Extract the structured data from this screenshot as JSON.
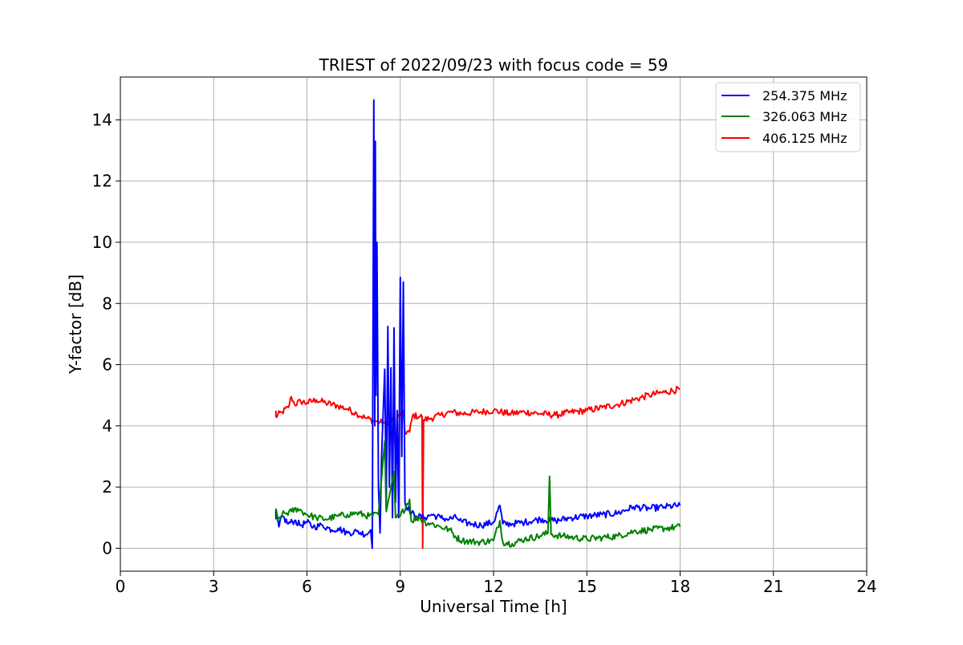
{
  "chart_data": {
    "type": "line",
    "title": "TRIEST of 2022/09/23 with focus code = 59",
    "xlabel": "Universal Time [h]",
    "ylabel": "Y-factor [dB]",
    "xlim": [
      0,
      24
    ],
    "ylim": [
      -0.75,
      15.4
    ],
    "xticks": [
      0,
      3,
      6,
      9,
      12,
      15,
      18,
      21,
      24
    ],
    "yticks": [
      0,
      2,
      4,
      6,
      8,
      10,
      12,
      14
    ],
    "grid": true,
    "legend_position": "top-right",
    "series": [
      {
        "name": "254.375 MHz",
        "color": "#0000ff",
        "points": [
          [
            5.0,
            0.95
          ],
          [
            5.0,
            1.25
          ],
          [
            5.1,
            0.7
          ],
          [
            5.2,
            1.05
          ],
          [
            5.4,
            0.8
          ],
          [
            5.6,
            0.9
          ],
          [
            5.8,
            0.75
          ],
          [
            6.0,
            0.85
          ],
          [
            6.2,
            0.7
          ],
          [
            6.5,
            0.75
          ],
          [
            6.8,
            0.6
          ],
          [
            7.0,
            0.65
          ],
          [
            7.3,
            0.5
          ],
          [
            7.6,
            0.55
          ],
          [
            7.9,
            0.45
          ],
          [
            8.05,
            0.6
          ],
          [
            8.1,
            0.0
          ],
          [
            8.15,
            14.65
          ],
          [
            8.18,
            4.0
          ],
          [
            8.2,
            13.3
          ],
          [
            8.22,
            5.0
          ],
          [
            8.25,
            10.0
          ],
          [
            8.3,
            2.0
          ],
          [
            8.35,
            0.5
          ],
          [
            8.4,
            3.0
          ],
          [
            8.5,
            5.85
          ],
          [
            8.55,
            1.5
          ],
          [
            8.6,
            7.25
          ],
          [
            8.65,
            2.0
          ],
          [
            8.7,
            5.9
          ],
          [
            8.75,
            1.0
          ],
          [
            8.8,
            7.2
          ],
          [
            8.85,
            1.5
          ],
          [
            8.9,
            4.5
          ],
          [
            8.95,
            1.0
          ],
          [
            9.0,
            8.85
          ],
          [
            9.05,
            3.0
          ],
          [
            9.1,
            8.7
          ],
          [
            9.15,
            1.5
          ],
          [
            9.3,
            1.2
          ],
          [
            9.5,
            1.05
          ],
          [
            9.8,
            1.0
          ],
          [
            10.0,
            1.1
          ],
          [
            10.3,
            1.0
          ],
          [
            10.5,
            0.95
          ],
          [
            10.8,
            1.0
          ],
          [
            11.0,
            0.85
          ],
          [
            11.3,
            0.8
          ],
          [
            11.6,
            0.75
          ],
          [
            12.0,
            0.85
          ],
          [
            12.2,
            1.4
          ],
          [
            12.3,
            0.8
          ],
          [
            12.6,
            0.8
          ],
          [
            13.0,
            0.85
          ],
          [
            13.5,
            0.95
          ],
          [
            14.0,
            0.9
          ],
          [
            14.5,
            1.0
          ],
          [
            15.0,
            1.05
          ],
          [
            15.5,
            1.1
          ],
          [
            16.0,
            1.15
          ],
          [
            16.5,
            1.35
          ],
          [
            17.0,
            1.3
          ],
          [
            17.5,
            1.35
          ],
          [
            18.0,
            1.4
          ]
        ]
      },
      {
        "name": "326.063 MHz",
        "color": "#008000",
        "points": [
          [
            5.0,
            1.3
          ],
          [
            5.05,
            0.9
          ],
          [
            5.2,
            1.1
          ],
          [
            5.5,
            1.2
          ],
          [
            5.7,
            1.3
          ],
          [
            6.0,
            1.1
          ],
          [
            6.3,
            1.0
          ],
          [
            6.6,
            0.95
          ],
          [
            7.0,
            1.05
          ],
          [
            7.3,
            1.1
          ],
          [
            7.6,
            1.15
          ],
          [
            8.0,
            1.05
          ],
          [
            8.3,
            1.1
          ],
          [
            8.5,
            3.5
          ],
          [
            8.55,
            1.2
          ],
          [
            8.8,
            2.5
          ],
          [
            8.85,
            1.0
          ],
          [
            9.0,
            1.05
          ],
          [
            9.3,
            1.6
          ],
          [
            9.35,
            0.9
          ],
          [
            9.6,
            1.0
          ],
          [
            9.8,
            0.85
          ],
          [
            10.0,
            0.8
          ],
          [
            10.3,
            0.7
          ],
          [
            10.6,
            0.6
          ],
          [
            10.8,
            0.35
          ],
          [
            11.0,
            0.25
          ],
          [
            11.5,
            0.2
          ],
          [
            12.0,
            0.25
          ],
          [
            12.2,
            0.9
          ],
          [
            12.3,
            0.2
          ],
          [
            12.6,
            0.15
          ],
          [
            13.0,
            0.3
          ],
          [
            13.5,
            0.4
          ],
          [
            13.75,
            0.5
          ],
          [
            13.8,
            2.35
          ],
          [
            13.85,
            0.45
          ],
          [
            14.2,
            0.4
          ],
          [
            14.6,
            0.35
          ],
          [
            15.0,
            0.3
          ],
          [
            15.5,
            0.35
          ],
          [
            16.0,
            0.4
          ],
          [
            16.5,
            0.55
          ],
          [
            17.0,
            0.6
          ],
          [
            17.5,
            0.65
          ],
          [
            18.0,
            0.7
          ]
        ]
      },
      {
        "name": "406.125 MHz",
        "color": "#ff0000",
        "points": [
          [
            5.0,
            4.5
          ],
          [
            5.0,
            4.3
          ],
          [
            5.2,
            4.45
          ],
          [
            5.4,
            4.6
          ],
          [
            5.5,
            4.95
          ],
          [
            5.6,
            4.7
          ],
          [
            5.8,
            4.8
          ],
          [
            6.0,
            4.75
          ],
          [
            6.3,
            4.85
          ],
          [
            6.6,
            4.75
          ],
          [
            7.0,
            4.65
          ],
          [
            7.3,
            4.55
          ],
          [
            7.6,
            4.4
          ],
          [
            7.9,
            4.25
          ],
          [
            8.2,
            4.15
          ],
          [
            8.5,
            4.1
          ],
          [
            8.8,
            4.2
          ],
          [
            8.85,
            3.0
          ],
          [
            8.9,
            4.3
          ],
          [
            9.0,
            4.35
          ],
          [
            9.1,
            4.45
          ],
          [
            9.15,
            3.8
          ],
          [
            9.3,
            3.8
          ],
          [
            9.4,
            4.35
          ],
          [
            9.6,
            4.3
          ],
          [
            9.7,
            4.3
          ],
          [
            9.72,
            0.0
          ],
          [
            9.75,
            4.2
          ],
          [
            10.0,
            4.25
          ],
          [
            10.3,
            4.35
          ],
          [
            10.6,
            4.45
          ],
          [
            11.0,
            4.4
          ],
          [
            11.5,
            4.45
          ],
          [
            12.0,
            4.5
          ],
          [
            12.5,
            4.4
          ],
          [
            13.0,
            4.45
          ],
          [
            13.5,
            4.4
          ],
          [
            14.0,
            4.35
          ],
          [
            14.5,
            4.45
          ],
          [
            15.0,
            4.5
          ],
          [
            15.5,
            4.6
          ],
          [
            16.0,
            4.7
          ],
          [
            16.5,
            4.85
          ],
          [
            17.0,
            5.0
          ],
          [
            17.5,
            5.1
          ],
          [
            18.0,
            5.2
          ]
        ]
      }
    ]
  }
}
